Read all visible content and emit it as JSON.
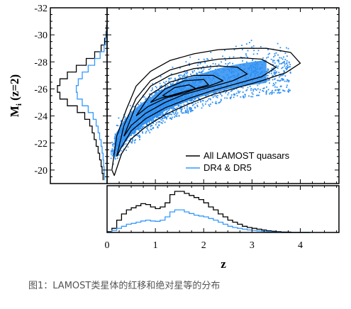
{
  "chart_data": {
    "type": "scatter",
    "xlabel": "z",
    "ylabel": "Mi (z=2)",
    "ylabel_main": "M",
    "ylabel_sub": "i",
    "ylabel_rest": " (z=2)",
    "xlim": [
      0,
      4.8
    ],
    "ylim": [
      -19,
      -32
    ],
    "x_ticks": [
      "0",
      "1",
      "2",
      "3",
      "4"
    ],
    "y_ticks": [
      "-32",
      "-30",
      "-28",
      "-26",
      "-24",
      "-22",
      "-20"
    ],
    "colors": {
      "all": "#000000",
      "dr": "#3399ff",
      "scatter": "#2d8ff2"
    },
    "legend": {
      "position": "lower-right",
      "entries": [
        {
          "label": "All LAMOST quasars",
          "color": "#000000"
        },
        {
          "label": "DR4 & DR5",
          "color": "#3399ff"
        }
      ]
    },
    "ridge": {
      "x": [
        0.15,
        0.4,
        0.7,
        1.0,
        1.3,
        1.6,
        2.0,
        2.4,
        2.8,
        3.2,
        3.6
      ],
      "y": [
        -21.5,
        -23.0,
        -23.9,
        -24.6,
        -25.3,
        -25.7,
        -26.2,
        -26.6,
        -26.9,
        -27.1,
        -27.3
      ]
    },
    "contours": [
      {
        "name": "outer",
        "x": [
          0.1,
          0.2,
          0.4,
          0.6,
          0.9,
          1.3,
          1.8,
          2.3,
          2.8,
          3.3,
          3.8,
          4.0,
          3.7,
          3.2,
          2.7,
          2.2,
          1.7,
          1.2,
          0.8,
          0.5,
          0.3,
          0.15,
          0.1
        ],
        "y": [
          -20.0,
          -22.5,
          -24.5,
          -26.2,
          -27.3,
          -28.1,
          -28.6,
          -28.9,
          -29.0,
          -29.0,
          -28.7,
          -27.9,
          -27.2,
          -26.6,
          -26.1,
          -25.6,
          -24.9,
          -24.1,
          -23.2,
          -22.3,
          -21.2,
          -19.6,
          -20.0
        ]
      },
      {
        "name": "mid",
        "x": [
          0.2,
          0.35,
          0.6,
          0.9,
          1.3,
          1.8,
          2.3,
          2.8,
          3.2,
          3.5,
          3.2,
          2.7,
          2.2,
          1.7,
          1.2,
          0.8,
          0.5,
          0.3,
          0.2
        ],
        "y": [
          -21.0,
          -23.3,
          -25.3,
          -26.6,
          -27.4,
          -27.9,
          -28.2,
          -28.3,
          -28.2,
          -27.6,
          -26.9,
          -26.4,
          -25.9,
          -25.3,
          -24.6,
          -23.8,
          -22.9,
          -21.7,
          -21.0
        ]
      },
      {
        "name": "inner1",
        "x": [
          0.35,
          0.6,
          0.9,
          1.3,
          1.8,
          2.3,
          2.7,
          2.9,
          2.6,
          2.1,
          1.6,
          1.2,
          0.8,
          0.5,
          0.35
        ],
        "y": [
          -22.5,
          -24.8,
          -26.2,
          -27.0,
          -27.5,
          -27.7,
          -27.6,
          -27.1,
          -26.6,
          -26.1,
          -25.6,
          -25.0,
          -24.2,
          -23.3,
          -22.5
        ]
      },
      {
        "name": "inner2",
        "x": [
          0.6,
          0.9,
          1.3,
          1.8,
          2.2,
          2.4,
          2.1,
          1.6,
          1.2,
          0.85,
          0.6
        ],
        "y": [
          -24.0,
          -25.6,
          -26.5,
          -27.0,
          -27.0,
          -26.6,
          -26.2,
          -25.8,
          -25.3,
          -24.7,
          -24.0
        ]
      },
      {
        "name": "inner3",
        "x": [
          0.9,
          1.2,
          1.6,
          2.0,
          2.1,
          1.8,
          1.4,
          1.1,
          0.9
        ],
        "y": [
          -25.0,
          -26.0,
          -26.6,
          -26.7,
          -26.3,
          -26.0,
          -25.6,
          -25.3,
          -25.0
        ]
      },
      {
        "name": "core",
        "x": [
          1.15,
          1.4,
          1.7,
          1.85,
          1.6,
          1.3,
          1.15
        ],
        "y": [
          -25.5,
          -26.1,
          -26.3,
          -26.0,
          -25.7,
          -25.4,
          -25.5
        ]
      }
    ],
    "m_hist": {
      "m": [
        -19.5,
        -20.0,
        -20.5,
        -21.0,
        -21.5,
        -22.0,
        -22.5,
        -23.0,
        -23.5,
        -24.0,
        -24.5,
        -25.0,
        -25.5,
        -26.0,
        -26.5,
        -27.0,
        -27.5,
        -28.0,
        -28.5,
        -29.0,
        -29.5,
        -30.0,
        -30.5
      ],
      "all": [
        0.08,
        0.1,
        0.12,
        0.15,
        0.18,
        0.22,
        0.26,
        0.3,
        0.35,
        0.45,
        0.6,
        0.8,
        0.95,
        1.0,
        0.95,
        0.8,
        0.62,
        0.42,
        0.25,
        0.12,
        0.05,
        0.02,
        0.01
      ],
      "dr": [
        0.05,
        0.06,
        0.07,
        0.08,
        0.1,
        0.12,
        0.15,
        0.18,
        0.22,
        0.28,
        0.38,
        0.5,
        0.6,
        0.62,
        0.58,
        0.5,
        0.38,
        0.25,
        0.14,
        0.06,
        0.03,
        0.01,
        0.0
      ]
    },
    "z_hist": {
      "z": [
        0.0,
        0.1,
        0.2,
        0.3,
        0.4,
        0.5,
        0.6,
        0.7,
        0.8,
        0.9,
        1.0,
        1.1,
        1.2,
        1.3,
        1.4,
        1.5,
        1.6,
        1.7,
        1.8,
        1.9,
        2.0,
        2.1,
        2.2,
        2.3,
        2.4,
        2.5,
        2.6,
        2.7,
        2.8,
        2.9,
        3.0,
        3.1,
        3.2,
        3.3,
        3.4,
        3.5,
        3.6,
        3.7,
        3.8,
        3.9,
        4.0,
        4.1
      ],
      "all": [
        0.02,
        0.1,
        0.3,
        0.45,
        0.55,
        0.6,
        0.65,
        0.7,
        0.68,
        0.62,
        0.58,
        0.62,
        0.72,
        0.92,
        1.0,
        1.0,
        0.95,
        0.9,
        0.85,
        0.8,
        0.72,
        0.62,
        0.55,
        0.45,
        0.38,
        0.3,
        0.25,
        0.2,
        0.15,
        0.12,
        0.1,
        0.08,
        0.06,
        0.04,
        0.03,
        0.02,
        0.01,
        0.01,
        0.0,
        0.0,
        0.0,
        0.0
      ],
      "dr": [
        0.01,
        0.05,
        0.1,
        0.15,
        0.2,
        0.22,
        0.25,
        0.28,
        0.3,
        0.28,
        0.27,
        0.3,
        0.38,
        0.5,
        0.55,
        0.55,
        0.5,
        0.46,
        0.42,
        0.4,
        0.38,
        0.34,
        0.3,
        0.25,
        0.2,
        0.15,
        0.12,
        0.1,
        0.08,
        0.06,
        0.05,
        0.04,
        0.03,
        0.02,
        0.01,
        0.01,
        0.0,
        0.0,
        0.0,
        0.0,
        0.0,
        0.0
      ]
    }
  },
  "caption": "图1：LAMOST类星体的红移和绝对星等的分布"
}
